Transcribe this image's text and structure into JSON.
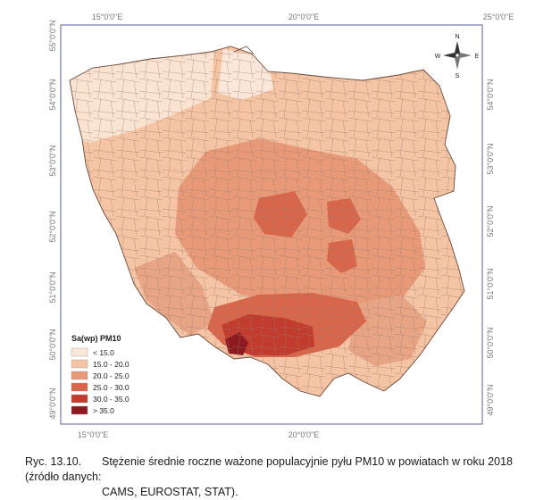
{
  "map": {
    "top_ticks": [
      "15°0'0\"E",
      "20°0'0\"E",
      "25°0'0\"E"
    ],
    "bottom_ticks": [
      "15°0'0\"E",
      "20°0'0\"E"
    ],
    "left_ticks": [
      "55°0'0\"N",
      "54°0'0\"N",
      "53°0'0\"N",
      "52°0'0\"N",
      "51°0'0\"N",
      "50°0'0\"N",
      "49°0'0\"N"
    ],
    "right_ticks": [
      "54°0'0\"N",
      "53°0'0\"N",
      "52°0'0\"N",
      "51°0'0\"N",
      "50°0'0\"N",
      "49°0'0\"N"
    ],
    "compass": {
      "n": "N",
      "s": "S",
      "e": "E",
      "w": "W"
    },
    "legend": {
      "title": "Sa(wp) PM10",
      "items": [
        {
          "label": "< 15.0",
          "color": "#fbe7d9"
        },
        {
          "label": "15.0 - 20.0",
          "color": "#f4c4a4"
        },
        {
          "label": "20.0 - 25.0",
          "color": "#e89a78"
        },
        {
          "label": "25.0 - 30.0",
          "color": "#d8664b"
        },
        {
          "label": "30.0 - 35.0",
          "color": "#c13c2e"
        },
        {
          "label": "> 35.0",
          "color": "#8c1a1f"
        }
      ]
    }
  },
  "caption": {
    "number": "Ryc. 13.10.",
    "line1": "Stężenie średnie roczne ważone populacyjnie pyłu PM10 w powiatach w roku 2018 (źródło danych:",
    "line2": "CAMS, EUROSTAT, STAT)."
  }
}
